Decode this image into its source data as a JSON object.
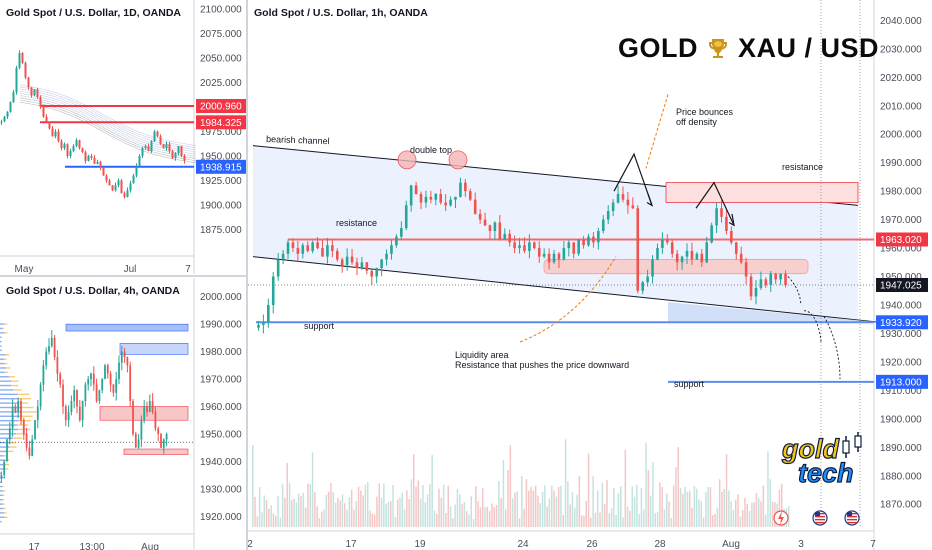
{
  "header": {
    "left": "GOLD",
    "right": "XAU / USD",
    "trophy_icon": "trophy-icon"
  },
  "logo": {
    "line1": "gold",
    "line2": "tech",
    "color_primary": "#f5c518",
    "color_secondary": "#1e90ff"
  },
  "colors": {
    "up": "#26a69a",
    "down": "#ef5350",
    "resistance": "#f23645",
    "support": "#2962ff",
    "last_price": "#131722"
  },
  "charts": {
    "daily": {
      "title": "Gold Spot / U.S. Dollar, 1D, OANDA",
      "x_ticks": [
        "May",
        "Jul",
        "7"
      ],
      "y_ticks": [
        "2100.000",
        "2075.000",
        "2050.000",
        "2025.000",
        "2000.000",
        "1975.000",
        "1950.000",
        "1925.000",
        "1900.000",
        "1875.000"
      ],
      "ylim": [
        1852,
        2104
      ],
      "price_tags": [
        {
          "value": 2000.96,
          "label": "2000.960",
          "kind": "resistance"
        },
        {
          "value": 1984.325,
          "label": "1984.325",
          "kind": "resistance"
        },
        {
          "value": 1938.915,
          "label": "1938.915",
          "kind": "support"
        }
      ],
      "closes": [
        1985,
        1990,
        1995,
        2005,
        2015,
        2040,
        2055,
        2045,
        2030,
        2020,
        2012,
        2018,
        2010,
        2000,
        1990,
        1985,
        1978,
        1970,
        1975,
        1965,
        1958,
        1962,
        1950,
        1955,
        1960,
        1966,
        1958,
        1954,
        1945,
        1950,
        1948,
        1942,
        1944,
        1938,
        1930,
        1925,
        1920,
        1915,
        1920,
        1925,
        1912,
        1908,
        1915,
        1922,
        1930,
        1940,
        1950,
        1958,
        1960,
        1955,
        1965,
        1975,
        1970,
        1962,
        1958,
        1962,
        1955,
        1948,
        1953,
        1960,
        1950,
        1945
      ]
    },
    "h4": {
      "title": "Gold Spot / U.S. Dollar, 4h, OANDA",
      "x_ticks": [
        "17",
        "13:00",
        "Aug"
      ],
      "y_ticks": [
        "2000.000",
        "1990.000",
        "1980.000",
        "1970.000",
        "1960.000",
        "1950.000",
        "1940.000",
        "1930.000",
        "1920.000"
      ],
      "ylim": [
        1915,
        2005
      ],
      "closes": [
        1935,
        1940,
        1948,
        1952,
        1960,
        1958,
        1962,
        1955,
        1950,
        1945,
        1942,
        1948,
        1955,
        1960,
        1968,
        1975,
        1980,
        1982,
        1985,
        1978,
        1972,
        1968,
        1960,
        1955,
        1958,
        1962,
        1966,
        1960,
        1955,
        1962,
        1968,
        1970,
        1972,
        1968,
        1962,
        1966,
        1970,
        1975,
        1972,
        1968,
        1965,
        1970,
        1976,
        1980,
        1978,
        1975,
        1962,
        1950,
        1945,
        1948,
        1955,
        1960,
        1958,
        1962,
        1958,
        1952,
        1950,
        1945,
        1948,
        1950
      ]
    },
    "h1": {
      "title": "Gold Spot / U.S. Dollar, 1h, OANDA",
      "x_ticks": [
        "2",
        "17",
        "19",
        "24",
        "26",
        "28",
        "Aug",
        "3",
        "7"
      ],
      "y_ticks": [
        "2040.000",
        "2030.000",
        "2020.000",
        "2010.000",
        "2000.000",
        "1990.000",
        "1980.000",
        "1970.000",
        "1960.000",
        "1950.000",
        "1940.000",
        "1930.000",
        "1920.000",
        "1910.000",
        "1900.000",
        "1890.000",
        "1880.000",
        "1870.000"
      ],
      "ylim": [
        1862,
        2044
      ],
      "price_tags": [
        {
          "value": 1963.02,
          "label": "1963.020",
          "kind": "resistance"
        },
        {
          "value": 1947.025,
          "label": "1947.025",
          "kind": "last"
        },
        {
          "value": 1933.92,
          "label": "1933.920",
          "kind": "support"
        },
        {
          "value": 1913.0,
          "label": "1913.000",
          "kind": "support"
        }
      ],
      "annotations": {
        "bearish_channel": "bearish channel",
        "double_top": "double top",
        "resistance_left": "resistance",
        "resistance_right": "resistance",
        "support_1": "support",
        "support_2": "support",
        "price_bounces_1": "Price bounces",
        "price_bounces_2": "off density",
        "liquidity_1": "Liquidity area",
        "liquidity_2": "Resistance that pushes the price downward"
      },
      "event_icons": [
        "lightning-icon",
        "us-flag-icon",
        "us-flag-icon"
      ],
      "closes": [
        1933,
        1934,
        1940,
        1950,
        1956,
        1958,
        1962,
        1960,
        1958,
        1961,
        1959,
        1962,
        1960,
        1957,
        1961,
        1959,
        1956,
        1954,
        1957,
        1955,
        1953,
        1955,
        1952,
        1950,
        1953,
        1956,
        1958,
        1961,
        1964,
        1967,
        1975,
        1982,
        1979,
        1976,
        1978,
        1977,
        1979,
        1976,
        1975,
        1977,
        1978,
        1983,
        1980,
        1977,
        1972,
        1970,
        1968,
        1966,
        1969,
        1963,
        1965,
        1962,
        1960,
        1961,
        1959,
        1962,
        1960,
        1957,
        1958,
        1955,
        1958,
        1956,
        1960,
        1962,
        1958,
        1963,
        1961,
        1964,
        1962,
        1966,
        1970,
        1973,
        1976,
        1979,
        1977,
        1975,
        1974,
        1945,
        1948,
        1950,
        1956,
        1960,
        1963,
        1962,
        1958,
        1955,
        1957,
        1959,
        1956,
        1958,
        1955,
        1962,
        1968,
        1974,
        1971,
        1966,
        1962,
        1958,
        1955,
        1950,
        1943,
        1946,
        1949,
        1947,
        1951,
        1949,
        1951,
        1947
      ]
    }
  }
}
